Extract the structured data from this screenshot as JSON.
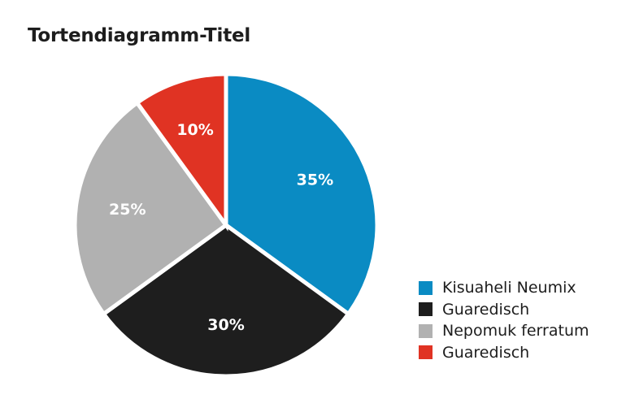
{
  "chart_data": {
    "type": "pie",
    "title": "Tortendiagramm-Titel",
    "slices": [
      {
        "label": "Kisuaheli Neumix",
        "value": 35,
        "display": "35%",
        "color": "#0a8bc3"
      },
      {
        "label": "Guaredisch",
        "value": 30,
        "display": "30%",
        "color": "#1e1e1e"
      },
      {
        "label": "Nepomuk ferratum",
        "value": 25,
        "display": "25%",
        "color": "#b1b1b1"
      },
      {
        "label": "Guaredisch",
        "value": 10,
        "display": "10%",
        "color": "#e03323"
      }
    ],
    "legend": "bottom-right",
    "start_angle": "12 o'clock",
    "direction": "clockwise",
    "slice_separator_color": "#ffffff"
  }
}
